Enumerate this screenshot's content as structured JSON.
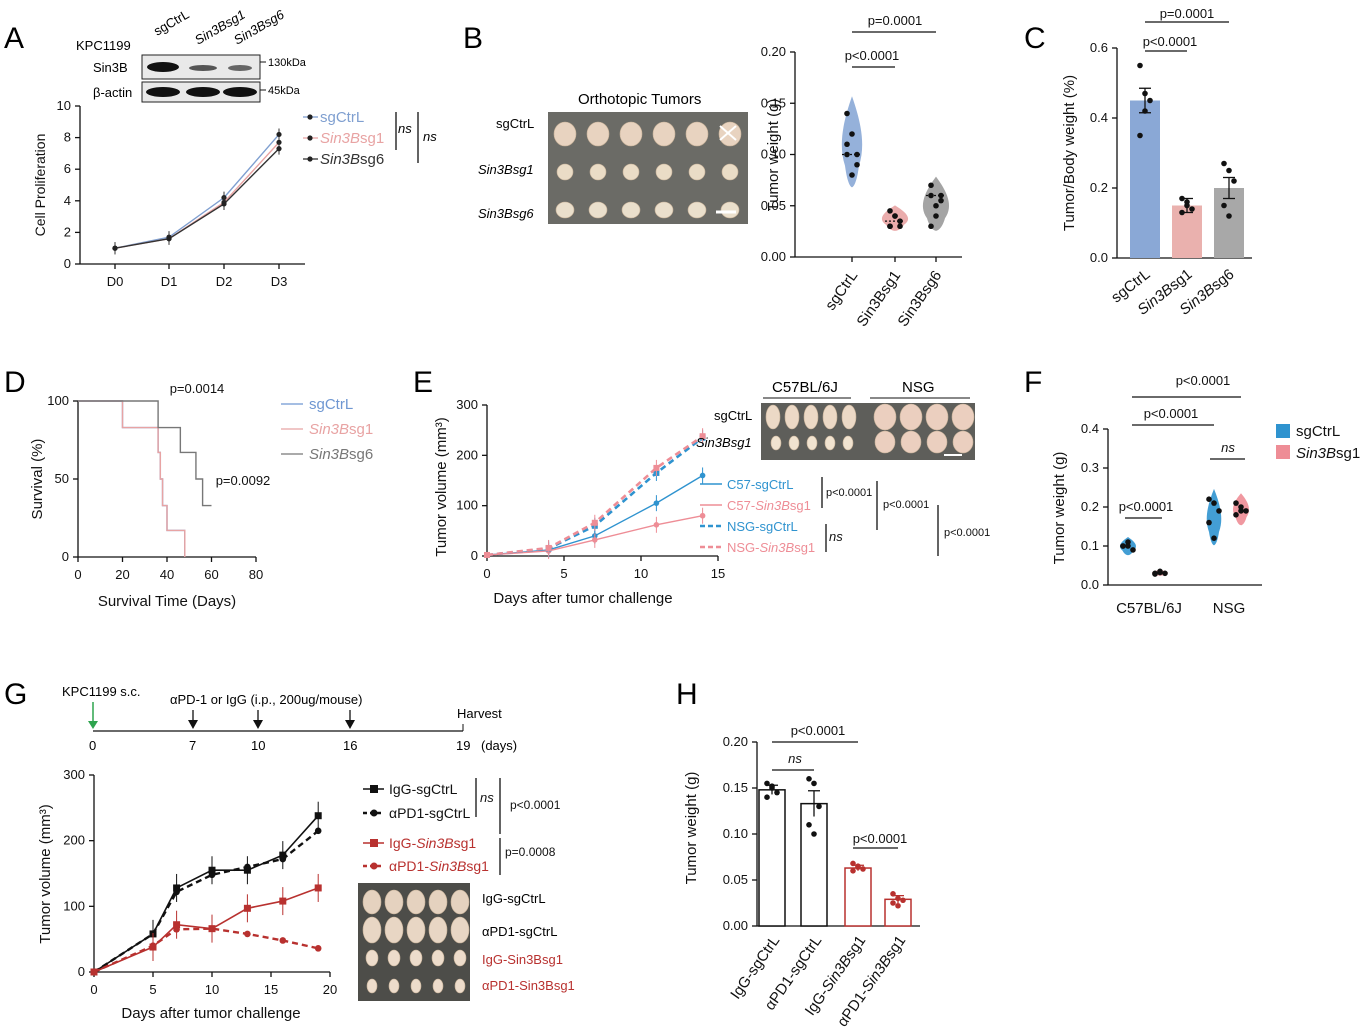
{
  "panels": {
    "A": {
      "letter": "A",
      "cell_line": "KPC1199",
      "lanes": [
        "sgCtrL",
        "Sin3Bsg1",
        "Sin3Bsg6"
      ],
      "blot_rows": [
        "Sin3B",
        "β-actin"
      ],
      "mw": [
        "130kDa",
        "45kDa"
      ],
      "ns1": "ns",
      "ns2": "ns",
      "chart_data": {
        "type": "line",
        "ylabel": "Cell Proliferation",
        "categories": [
          "D0",
          "D1",
          "D2",
          "D3"
        ],
        "ylim": [
          0,
          10
        ],
        "yticks": [
          0,
          2,
          4,
          6,
          8,
          10
        ],
        "series": [
          {
            "name": "sgCtrL",
            "color": "#7f9fd0",
            "values": [
              1.0,
              1.7,
              4.2,
              8.2
            ]
          },
          {
            "name": "Sin3Bsg1",
            "color": "#e8a3a3",
            "values": [
              1.0,
              1.6,
              3.9,
              7.7
            ]
          },
          {
            "name": "Sin3Bsg6",
            "color": "#333333",
            "values": [
              1.0,
              1.6,
              3.8,
              7.3
            ]
          }
        ]
      }
    },
    "B": {
      "letter": "B",
      "photo_title": "Orthotopic Tumors",
      "photo_rows": [
        "sgCtrL",
        "Sin3Bsg1",
        "Sin3Bsg6"
      ],
      "p1": "p=0.0001",
      "p2": "p<0.0001",
      "chart_data": {
        "type": "violin",
        "ylabel": "Tumor weight (g)",
        "categories": [
          "sgCtrL",
          "Sin3Bsg1",
          "Sin3Bsg6"
        ],
        "ylim": [
          0,
          0.2
        ],
        "yticks": [
          "0.00",
          "0.05",
          "0.10",
          "0.15",
          "0.20"
        ],
        "colors": [
          "#8aa8d6",
          "#e8a3a3",
          "#9a9a9a"
        ],
        "points": [
          [
            0.1,
            0.12,
            0.09,
            0.11,
            0.08,
            0.1,
            0.14
          ],
          [
            0.03,
            0.04,
            0.035,
            0.03,
            0.04,
            0.03,
            0.045
          ],
          [
            0.06,
            0.05,
            0.055,
            0.07,
            0.04,
            0.06,
            0.03
          ]
        ],
        "medians": [
          0.1,
          0.035,
          0.06
        ]
      }
    },
    "C": {
      "letter": "C",
      "p1": "p=0.0001",
      "p2": "p<0.0001",
      "chart_data": {
        "type": "bar",
        "ylabel": "Tumor/Body weight (%)",
        "categories": [
          "sgCtrL",
          "Sin3Bsg1",
          "Sin3Bsg6"
        ],
        "values": [
          0.45,
          0.15,
          0.2
        ],
        "errors": [
          0.035,
          0.02,
          0.03
        ],
        "ylim": [
          0,
          0.6
        ],
        "yticks": [
          "0.0",
          "0.2",
          "0.4",
          "0.6"
        ],
        "colors": [
          "#8aa8d6",
          "#eab1ae",
          "#a8a8a8"
        ],
        "points": [
          [
            0.55,
            0.47,
            0.45,
            0.35,
            0.42
          ],
          [
            0.17,
            0.16,
            0.14,
            0.13,
            0.15
          ],
          [
            0.27,
            0.25,
            0.22,
            0.15,
            0.12
          ]
        ]
      }
    },
    "D": {
      "letter": "D",
      "p1": "p=0.0014",
      "p2": "p=0.0092",
      "chart_data": {
        "type": "survival",
        "xlabel": "Survival Time (Days)",
        "ylabel": "Survival (%)",
        "xlim": [
          0,
          80
        ],
        "xticks": [
          0,
          20,
          40,
          60,
          80
        ],
        "ylim": [
          0,
          100
        ],
        "yticks": [
          0,
          50,
          100
        ],
        "series": [
          {
            "name": "sgCtrL",
            "color": "#6f97d2",
            "steps": [
              [
                0,
                100
              ],
              [
                20,
                100
              ],
              [
                20,
                83
              ],
              [
                36,
                83
              ],
              [
                36,
                67
              ],
              [
                37,
                67
              ],
              [
                37,
                50
              ],
              [
                38,
                50
              ],
              [
                38,
                33
              ],
              [
                40,
                33
              ],
              [
                40,
                17
              ],
              [
                48,
                17
              ],
              [
                48,
                0
              ]
            ]
          },
          {
            "name": "Sin3Bsg1",
            "color": "#e8a3a3",
            "steps": [
              [
                0,
                100
              ],
              [
                20,
                100
              ],
              [
                20,
                83
              ],
              [
                36,
                83
              ],
              [
                36,
                67
              ],
              [
                37,
                67
              ],
              [
                37,
                50
              ],
              [
                38,
                50
              ],
              [
                38,
                33
              ],
              [
                40,
                33
              ],
              [
                40,
                17
              ],
              [
                48,
                17
              ],
              [
                48,
                0
              ]
            ]
          },
          {
            "name": "Sin3Bsg6",
            "color": "#777777",
            "steps": [
              [
                0,
                100
              ],
              [
                36,
                100
              ],
              [
                36,
                83
              ],
              [
                46,
                83
              ],
              [
                46,
                67
              ],
              [
                53,
                67
              ],
              [
                53,
                50
              ],
              [
                56,
                50
              ],
              [
                56,
                33
              ],
              [
                60,
                33
              ]
            ]
          }
        ]
      }
    },
    "E": {
      "letter": "E",
      "photo_groups": [
        "C57BL/6J",
        "NSG"
      ],
      "photo_rows": [
        "sgCtrL",
        "Sin3Bsg1"
      ],
      "ns": "ns",
      "pvals": [
        "p<0.0001",
        "p<0.0001",
        "p<0.0001"
      ],
      "chart_data": {
        "type": "line",
        "xlabel": "Days after tumor challenge",
        "ylabel": "Tumor volume (mm³)",
        "xlim": [
          0,
          15
        ],
        "xticks": [
          0,
          5,
          10,
          15
        ],
        "ylim": [
          0,
          300
        ],
        "yticks": [
          0,
          100,
          200,
          300
        ],
        "x": [
          0,
          4,
          7,
          11,
          14
        ],
        "series": [
          {
            "name": "C57-sgCtrL",
            "color": "#2f93cf",
            "dashed": false,
            "values": [
              2,
              12,
              40,
              105,
              160
            ]
          },
          {
            "name": "C57-Sin3Bsg1",
            "color": "#ee8d96",
            "dashed": false,
            "values": [
              2,
              10,
              32,
              62,
              80
            ]
          },
          {
            "name": "NSG-sgCtrL",
            "color": "#2f93cf",
            "dashed": true,
            "values": [
              2,
              15,
              60,
              165,
              235
            ]
          },
          {
            "name": "NSG-Sin3Bsg1",
            "color": "#ee8d96",
            "dashed": true,
            "values": [
              2,
              16,
              66,
              175,
              238
            ]
          }
        ]
      }
    },
    "F": {
      "letter": "F",
      "p_top": "p<0.0001",
      "p_mid": "p<0.0001",
      "p_c57": "p<0.0001",
      "ns": "ns",
      "legend": [
        "sgCtrL",
        "Sin3Bsg1"
      ],
      "chart_data": {
        "type": "violin",
        "ylabel": "Tumor weight (g)",
        "categories": [
          "C57BL/6J",
          "NSG"
        ],
        "ylim": [
          0,
          0.4
        ],
        "yticks": [
          "0.0",
          "0.1",
          "0.2",
          "0.3",
          "0.4"
        ],
        "colors": [
          "#2f93cf",
          "#ee8d96"
        ],
        "points": [
          [
            0.1,
            0.11,
            0.09,
            0.1,
            0.1
          ],
          [
            0.03,
            0.035,
            0.03,
            0.028,
            0.032
          ],
          [
            0.22,
            0.21,
            0.19,
            0.16,
            0.12
          ],
          [
            0.21,
            0.2,
            0.19,
            0.18,
            0.19
          ]
        ]
      }
    },
    "G": {
      "letter": "G",
      "timeline": {
        "start_label": "KPC1199 s.c.",
        "treatment_label": "αPD-1 or IgG (i.p., 200ug/mouse)",
        "end_label": "Harvest",
        "days": [
          "0",
          "7",
          "10",
          "16",
          "19"
        ],
        "unit": "(days)"
      },
      "ns": "ns",
      "pvals": [
        "p<0.0001",
        "p=0.0008"
      ],
      "photo_rows": [
        "IgG-sgCtrL",
        "αPD1-sgCtrL",
        "IgG-Sin3Bsg1",
        "αPD1-Sin3Bsg1"
      ],
      "chart_data": {
        "type": "line",
        "xlabel": "Days after tumor challenge",
        "ylabel": "Tumor volume (mm³)",
        "xlim": [
          0,
          20
        ],
        "xticks": [
          0,
          5,
          10,
          15,
          20
        ],
        "ylim": [
          0,
          300
        ],
        "yticks": [
          0,
          100,
          200,
          300
        ],
        "x": [
          0,
          5,
          7,
          10,
          13,
          16,
          19
        ],
        "series": [
          {
            "name": "IgG-sgCtrL",
            "color": "#111111",
            "dashed": false,
            "marker": "square",
            "values": [
              0,
              58,
              128,
              155,
              155,
              178,
              238
            ]
          },
          {
            "name": "αPD1-sgCtrL",
            "color": "#111111",
            "dashed": true,
            "marker": "circle",
            "values": [
              0,
              58,
              122,
              148,
              160,
              172,
              215
            ]
          },
          {
            "name": "IgG-Sin3Bsg1",
            "color": "#b8312f",
            "dashed": false,
            "marker": "square",
            "values": [
              0,
              38,
              72,
              66,
              97,
              108,
              128
            ]
          },
          {
            "name": "αPD1-Sin3Bsg1",
            "color": "#b8312f",
            "dashed": true,
            "marker": "circle",
            "values": [
              0,
              40,
              65,
              66,
              58,
              48,
              36
            ]
          }
        ]
      }
    },
    "H": {
      "letter": "H",
      "ns": "ns",
      "p1": "p<0.0001",
      "p2": "p<0.0001",
      "chart_data": {
        "type": "bar",
        "ylabel": "Tumor weight (g)",
        "categories": [
          "IgG-sgCtrL",
          "αPD1-sgCtrL",
          "IgG-Sin3Bsg1",
          "αPD1-Sin3Bsg1"
        ],
        "values": [
          0.148,
          0.133,
          0.063,
          0.029
        ],
        "errors": [
          0.005,
          0.014,
          0.003,
          0.004
        ],
        "ylim": [
          0,
          0.2
        ],
        "yticks": [
          "0.00",
          "0.05",
          "0.10",
          "0.15",
          "0.20"
        ],
        "colors": [
          "#111111",
          "#111111",
          "#b8312f",
          "#b8312f"
        ],
        "points": [
          [
            0.155,
            0.15,
            0.145,
            0.14,
            0.152
          ],
          [
            0.16,
            0.155,
            0.13,
            0.11,
            0.1
          ],
          [
            0.068,
            0.064,
            0.062,
            0.06,
            0.065
          ],
          [
            0.035,
            0.03,
            0.028,
            0.025,
            0.022
          ]
        ]
      }
    }
  }
}
